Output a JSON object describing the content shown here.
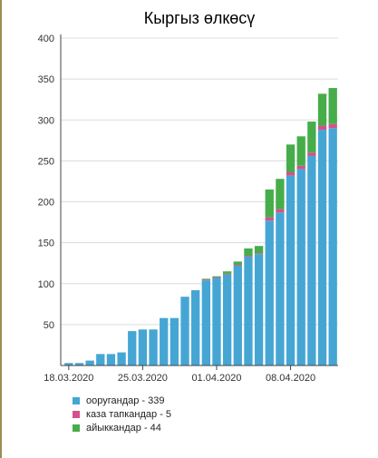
{
  "chart_data": {
    "type": "bar",
    "stacked": true,
    "title": "Кыргыз өлкөсү",
    "ylim": [
      0,
      400
    ],
    "yticks": [
      50,
      100,
      150,
      200,
      250,
      300,
      350,
      400
    ],
    "grid": true,
    "legend_position": "bottom-left",
    "xtick_labels": [
      {
        "index": 0,
        "label": "18.03.2020"
      },
      {
        "index": 7,
        "label": "25.03.2020"
      },
      {
        "index": 14,
        "label": "01.04.2020"
      },
      {
        "index": 21,
        "label": "08.04.2020"
      }
    ],
    "categories": [
      "18.03",
      "19.03",
      "20.03",
      "21.03",
      "22.03",
      "23.03",
      "24.03",
      "25.03",
      "26.03",
      "27.03",
      "28.03",
      "29.03",
      "30.03",
      "31.03",
      "01.04",
      "02.04",
      "03.04",
      "04.04",
      "05.04",
      "06.04",
      "07.04",
      "08.04",
      "09.04",
      "10.04",
      "11.04",
      "12.04"
    ],
    "series": [
      {
        "name": "ооругандар - 339",
        "color": "#45a6d4",
        "values": [
          3,
          3,
          6,
          14,
          14,
          16,
          42,
          44,
          44,
          58,
          58,
          84,
          92,
          104,
          107,
          111,
          122,
          133,
          136,
          177,
          187,
          232,
          240,
          256,
          288,
          290
        ]
      },
      {
        "name": "каза тапкандар - 5",
        "color": "#d6508f",
        "values": [
          0,
          0,
          0,
          0,
          0,
          0,
          0,
          0,
          0,
          0,
          0,
          0,
          0,
          1,
          1,
          1,
          1,
          1,
          1,
          4,
          4,
          4,
          4,
          4,
          5,
          5
        ]
      },
      {
        "name": "айыккандар - 44",
        "color": "#46ad4a",
        "values": [
          0,
          0,
          0,
          0,
          0,
          0,
          0,
          0,
          0,
          0,
          0,
          0,
          0,
          1,
          1,
          3,
          4,
          9,
          9,
          34,
          37,
          34,
          36,
          38,
          39,
          44
        ]
      }
    ]
  }
}
